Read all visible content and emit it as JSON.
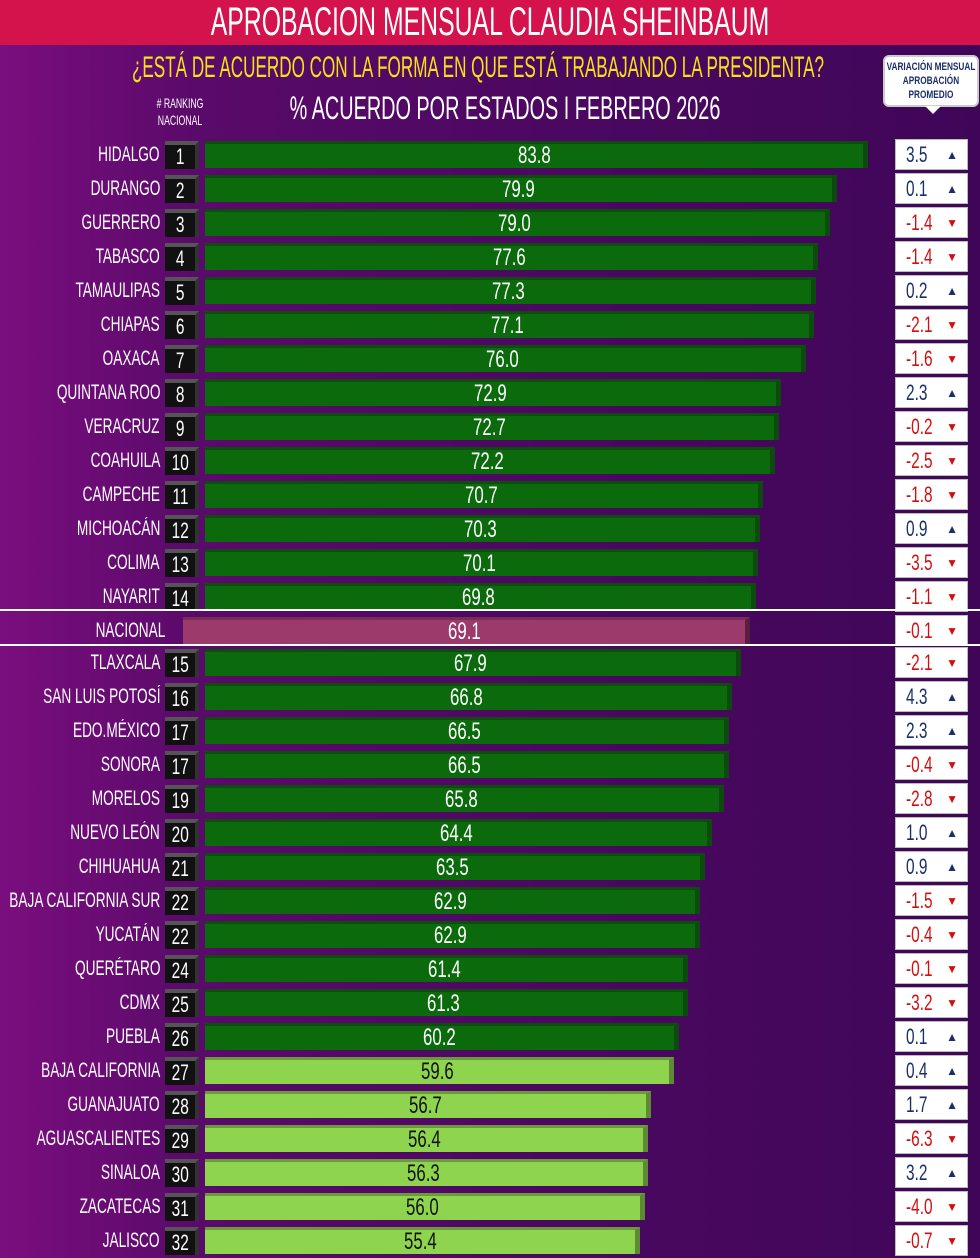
{
  "header": {
    "title": "APROBACION MENSUAL CLAUDIA SHEINBAUM",
    "question": "¿ESTÁ DE ACUERDO CON LA FORMA EN QUE ESTÁ TRABAJANDO LA PRESIDENTA?",
    "subtitle": "% ACUERDO POR ESTADOS I FEBRERO 2026",
    "rank_header": [
      "# RANKING",
      "NACIONAL"
    ],
    "variation_header": [
      "VARIACIÓN MENSUAL",
      "APROBACIÓN",
      "PROMEDIO"
    ]
  },
  "chart_data": {
    "type": "bar",
    "orientation": "horizontal",
    "title": "% ACUERDO POR ESTADOS I FEBRERO 2026",
    "colors": {
      "top": "#0a6a0c",
      "lower": "#8ed44f",
      "national": "#9c3a6c",
      "up": "#1a2e6a",
      "down": "#d01010"
    },
    "rows": [
      {
        "state": "HIDALGO",
        "rank": "1",
        "value": 83.8,
        "change": "3.5",
        "dir": "up"
      },
      {
        "state": "DURANGO",
        "rank": "2",
        "value": 79.9,
        "change": "0.1",
        "dir": "up"
      },
      {
        "state": "GUERRERO",
        "rank": "3",
        "value": 79.0,
        "change": "-1.4",
        "dir": "down"
      },
      {
        "state": "TABASCO",
        "rank": "4",
        "value": 77.6,
        "change": "-1.4",
        "dir": "down"
      },
      {
        "state": "TAMAULIPAS",
        "rank": "5",
        "value": 77.3,
        "change": "0.2",
        "dir": "up"
      },
      {
        "state": "CHIAPAS",
        "rank": "6",
        "value": 77.1,
        "change": "-2.1",
        "dir": "down"
      },
      {
        "state": "OAXACA",
        "rank": "7",
        "value": 76.0,
        "change": "-1.6",
        "dir": "down"
      },
      {
        "state": "QUINTANA ROO",
        "rank": "8",
        "value": 72.9,
        "change": "2.3",
        "dir": "up"
      },
      {
        "state": "VERACRUZ",
        "rank": "9",
        "value": 72.7,
        "change": "-0.2",
        "dir": "down"
      },
      {
        "state": "COAHUILA",
        "rank": "10",
        "value": 72.2,
        "change": "-2.5",
        "dir": "down"
      },
      {
        "state": "CAMPECHE",
        "rank": "11",
        "value": 70.7,
        "change": "-1.8",
        "dir": "down"
      },
      {
        "state": "MICHOACÁN",
        "rank": "12",
        "value": 70.3,
        "change": "0.9",
        "dir": "up"
      },
      {
        "state": "COLIMA",
        "rank": "13",
        "value": 70.1,
        "change": "-3.5",
        "dir": "down"
      },
      {
        "state": "NAYARIT",
        "rank": "14",
        "value": 69.8,
        "change": "-1.1",
        "dir": "down"
      },
      {
        "state": "NACIONAL",
        "rank": "",
        "value": 69.1,
        "change": "-0.1",
        "dir": "down",
        "national": true
      },
      {
        "state": "TLAXCALA",
        "rank": "15",
        "value": 67.9,
        "change": "-2.1",
        "dir": "down"
      },
      {
        "state": "SAN LUIS POTOSÍ",
        "rank": "16",
        "value": 66.8,
        "change": "4.3",
        "dir": "up"
      },
      {
        "state": "EDO.MÉXICO",
        "rank": "17",
        "value": 66.5,
        "change": "2.3",
        "dir": "up"
      },
      {
        "state": "SONORA",
        "rank": "17",
        "value": 66.5,
        "change": "-0.4",
        "dir": "down"
      },
      {
        "state": "MORELOS",
        "rank": "19",
        "value": 65.8,
        "change": "-2.8",
        "dir": "down"
      },
      {
        "state": "NUEVO LEÓN",
        "rank": "20",
        "value": 64.4,
        "change": "1.0",
        "dir": "up"
      },
      {
        "state": "CHIHUAHUA",
        "rank": "21",
        "value": 63.5,
        "change": "0.9",
        "dir": "up"
      },
      {
        "state": "BAJA CALIFORNIA SUR",
        "rank": "22",
        "value": 62.9,
        "change": "-1.5",
        "dir": "down"
      },
      {
        "state": "YUCATÁN",
        "rank": "22",
        "value": 62.9,
        "change": "-0.4",
        "dir": "down"
      },
      {
        "state": "QUERÉTARO",
        "rank": "24",
        "value": 61.4,
        "change": "-0.1",
        "dir": "down"
      },
      {
        "state": "CDMX",
        "rank": "25",
        "value": 61.3,
        "change": "-3.2",
        "dir": "down"
      },
      {
        "state": "PUEBLA",
        "rank": "26",
        "value": 60.2,
        "change": "0.1",
        "dir": "up"
      },
      {
        "state": "BAJA CALIFORNIA",
        "rank": "27",
        "value": 59.6,
        "change": "0.4",
        "dir": "up"
      },
      {
        "state": "GUANAJUATO",
        "rank": "28",
        "value": 56.7,
        "change": "1.7",
        "dir": "up"
      },
      {
        "state": "AGUASCALIENTES",
        "rank": "29",
        "value": 56.4,
        "change": "-6.3",
        "dir": "down"
      },
      {
        "state": "SINALOA",
        "rank": "30",
        "value": 56.3,
        "change": "3.2",
        "dir": "up"
      },
      {
        "state": "ZACATECAS",
        "rank": "31",
        "value": 56.0,
        "change": "-4.0",
        "dir": "down"
      },
      {
        "state": "JALISCO",
        "rank": "32",
        "value": 55.4,
        "change": "-0.7",
        "dir": "down"
      }
    ]
  }
}
